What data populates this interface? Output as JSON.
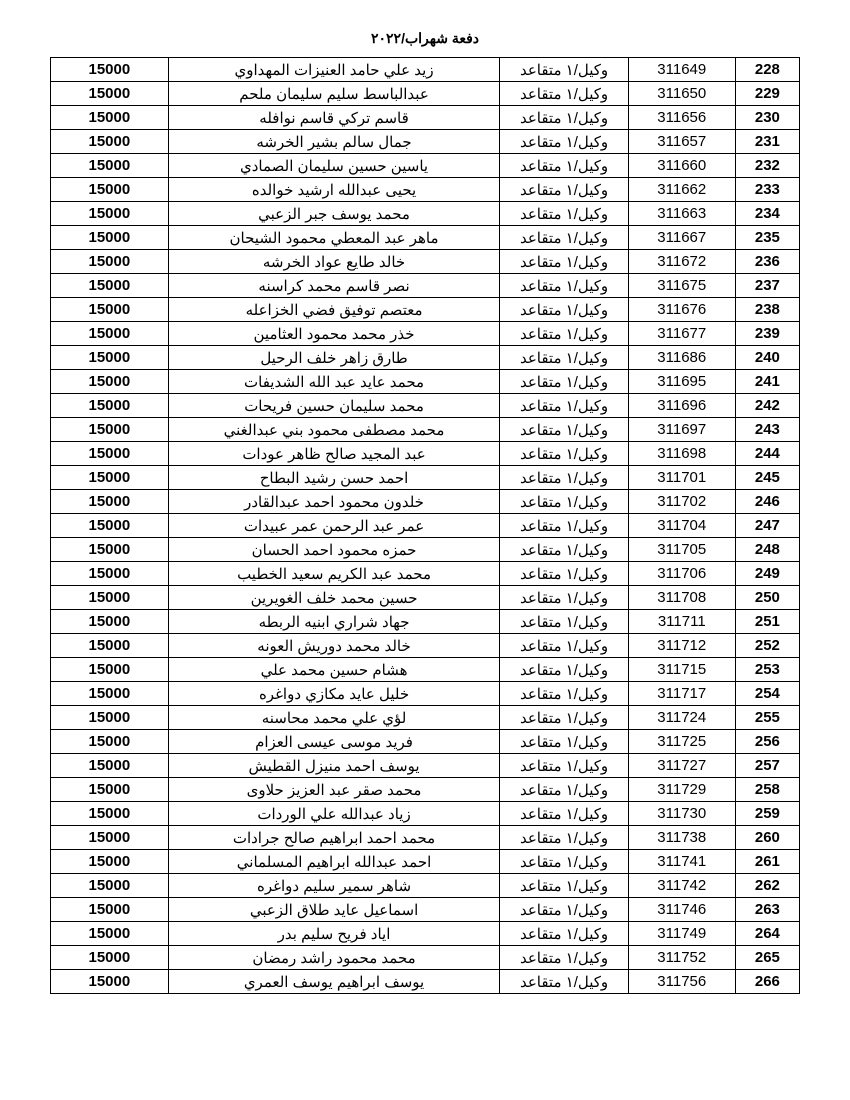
{
  "header": "دفعة شهراب/٢٠٢٢",
  "rows": [
    {
      "seq": "228",
      "id": "311649",
      "rank": "وكيل/١ متقاعد",
      "name": "زيد علي حامد العنيزات المهداوي",
      "amount": "15000"
    },
    {
      "seq": "229",
      "id": "311650",
      "rank": "وكيل/١ متقاعد",
      "name": "عبدالباسط سليم سليمان ملحم",
      "amount": "15000"
    },
    {
      "seq": "230",
      "id": "311656",
      "rank": "وكيل/١ متقاعد",
      "name": "قاسم تركي قاسم نوافله",
      "amount": "15000"
    },
    {
      "seq": "231",
      "id": "311657",
      "rank": "وكيل/١ متقاعد",
      "name": "جمال سالم بشير الخرشه",
      "amount": "15000"
    },
    {
      "seq": "232",
      "id": "311660",
      "rank": "وكيل/١ متقاعد",
      "name": "ياسين حسين سليمان الصمادي",
      "amount": "15000"
    },
    {
      "seq": "233",
      "id": "311662",
      "rank": "وكيل/١ متقاعد",
      "name": "يحيى عبدالله ارشيد خوالده",
      "amount": "15000"
    },
    {
      "seq": "234",
      "id": "311663",
      "rank": "وكيل/١ متقاعد",
      "name": "محمد يوسف جبر الزعبي",
      "amount": "15000"
    },
    {
      "seq": "235",
      "id": "311667",
      "rank": "وكيل/١ متقاعد",
      "name": "ماهر عبد المعطي محمود الشيحان",
      "amount": "15000"
    },
    {
      "seq": "236",
      "id": "311672",
      "rank": "وكيل/١ متقاعد",
      "name": "خالد طايع عواد الخرشه",
      "amount": "15000"
    },
    {
      "seq": "237",
      "id": "311675",
      "rank": "وكيل/١ متقاعد",
      "name": "نصر قاسم محمد كراسنه",
      "amount": "15000"
    },
    {
      "seq": "238",
      "id": "311676",
      "rank": "وكيل/١ متقاعد",
      "name": "معتصم توفيق فضي الخزاعله",
      "amount": "15000"
    },
    {
      "seq": "239",
      "id": "311677",
      "rank": "وكيل/١ متقاعد",
      "name": "خذر محمد محمود العثامين",
      "amount": "15000"
    },
    {
      "seq": "240",
      "id": "311686",
      "rank": "وكيل/١ متقاعد",
      "name": "طارق زاهر خلف الرحيل",
      "amount": "15000"
    },
    {
      "seq": "241",
      "id": "311695",
      "rank": "وكيل/١ متقاعد",
      "name": "محمد عايد عبد الله الشديفات",
      "amount": "15000"
    },
    {
      "seq": "242",
      "id": "311696",
      "rank": "وكيل/١ متقاعد",
      "name": "محمد سليمان حسين فريحات",
      "amount": "15000"
    },
    {
      "seq": "243",
      "id": "311697",
      "rank": "وكيل/١ متقاعد",
      "name": "محمد مصطفى محمود بني عبدالغني",
      "amount": "15000"
    },
    {
      "seq": "244",
      "id": "311698",
      "rank": "وكيل/١ متقاعد",
      "name": "عبد المجيد صالح ظاهر عودات",
      "amount": "15000"
    },
    {
      "seq": "245",
      "id": "311701",
      "rank": "وكيل/١ متقاعد",
      "name": "احمد حسن رشيد البطاح",
      "amount": "15000"
    },
    {
      "seq": "246",
      "id": "311702",
      "rank": "وكيل/١ متقاعد",
      "name": "خلدون محمود احمد عبدالقادر",
      "amount": "15000"
    },
    {
      "seq": "247",
      "id": "311704",
      "rank": "وكيل/١ متقاعد",
      "name": "عمر عبد الرحمن عمر عبيدات",
      "amount": "15000"
    },
    {
      "seq": "248",
      "id": "311705",
      "rank": "وكيل/١ متقاعد",
      "name": "حمزه محمود احمد الحسان",
      "amount": "15000"
    },
    {
      "seq": "249",
      "id": "311706",
      "rank": "وكيل/١ متقاعد",
      "name": "محمد عبد الكريم سعيد الخطيب",
      "amount": "15000"
    },
    {
      "seq": "250",
      "id": "311708",
      "rank": "وكيل/١ متقاعد",
      "name": "حسين محمد خلف الغويرين",
      "amount": "15000"
    },
    {
      "seq": "251",
      "id": "311711",
      "rank": "وكيل/١ متقاعد",
      "name": "جهاد شراري ابنيه الربطه",
      "amount": "15000"
    },
    {
      "seq": "252",
      "id": "311712",
      "rank": "وكيل/١ متقاعد",
      "name": "خالد محمد دوريش العونه",
      "amount": "15000"
    },
    {
      "seq": "253",
      "id": "311715",
      "rank": "وكيل/١ متقاعد",
      "name": "هشام حسين محمد علي",
      "amount": "15000"
    },
    {
      "seq": "254",
      "id": "311717",
      "rank": "وكيل/١ متقاعد",
      "name": "خليل عايد مكازي دواغره",
      "amount": "15000"
    },
    {
      "seq": "255",
      "id": "311724",
      "rank": "وكيل/١ متقاعد",
      "name": "لؤي علي محمد محاسنه",
      "amount": "15000"
    },
    {
      "seq": "256",
      "id": "311725",
      "rank": "وكيل/١ متقاعد",
      "name": "فريد موسى عيسى العزام",
      "amount": "15000"
    },
    {
      "seq": "257",
      "id": "311727",
      "rank": "وكيل/١ متقاعد",
      "name": "يوسف احمد منيزل القطيش",
      "amount": "15000"
    },
    {
      "seq": "258",
      "id": "311729",
      "rank": "وكيل/١ متقاعد",
      "name": "محمد صقر عبد العزيز حلاوى",
      "amount": "15000"
    },
    {
      "seq": "259",
      "id": "311730",
      "rank": "وكيل/١ متقاعد",
      "name": "زياد عبدالله علي الوردات",
      "amount": "15000"
    },
    {
      "seq": "260",
      "id": "311738",
      "rank": "وكيل/١ متقاعد",
      "name": "محمد احمد ابراهيم صالح جرادات",
      "amount": "15000"
    },
    {
      "seq": "261",
      "id": "311741",
      "rank": "وكيل/١ متقاعد",
      "name": "احمد عبدالله ابراهيم المسلماني",
      "amount": "15000"
    },
    {
      "seq": "262",
      "id": "311742",
      "rank": "وكيل/١ متقاعد",
      "name": "شاهر سمير سليم دواغره",
      "amount": "15000"
    },
    {
      "seq": "263",
      "id": "311746",
      "rank": "وكيل/١ متقاعد",
      "name": "اسماعيل عايد طلاق الزعبي",
      "amount": "15000"
    },
    {
      "seq": "264",
      "id": "311749",
      "rank": "وكيل/١ متقاعد",
      "name": "اياد فريح سليم بدر",
      "amount": "15000"
    },
    {
      "seq": "265",
      "id": "311752",
      "rank": "وكيل/١ متقاعد",
      "name": "محمد محمود راشد رمضان",
      "amount": "15000"
    },
    {
      "seq": "266",
      "id": "311756",
      "rank": "وكيل/١ متقاعد",
      "name": "يوسف ابراهيم يوسف العمري",
      "amount": "15000"
    }
  ]
}
